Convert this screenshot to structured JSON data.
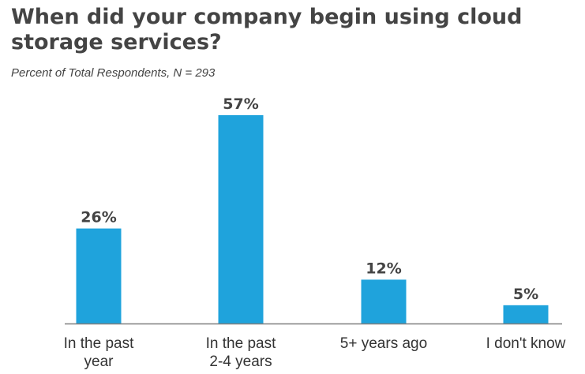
{
  "chart_data": {
    "type": "bar",
    "title": "When did your company begin using cloud storage services?",
    "subtitle": "Percent of Total Respondents, N = 293",
    "categories": [
      [
        "In the past",
        "year"
      ],
      [
        "In the past",
        "2-4 years"
      ],
      [
        "5+ years ago"
      ],
      [
        "I don't know"
      ]
    ],
    "values": [
      26,
      57,
      12,
      5
    ],
    "value_labels": [
      "26%",
      "57%",
      "12%",
      "5%"
    ],
    "ylim": [
      0,
      60
    ],
    "bar_color": "#1fa3dc",
    "axis_color": "#7f7f7f",
    "grid": false,
    "xlabel": "",
    "ylabel": ""
  }
}
